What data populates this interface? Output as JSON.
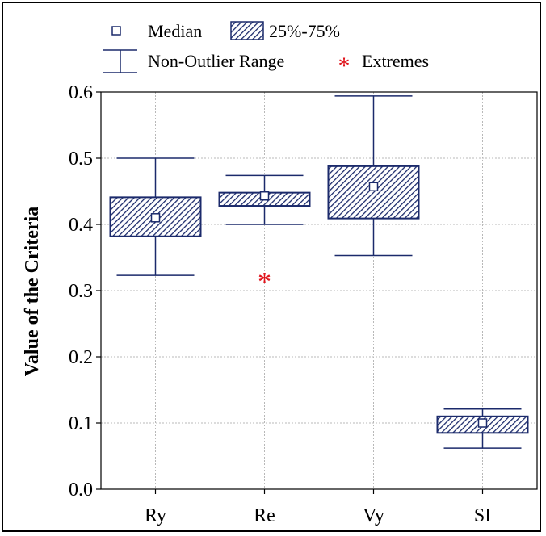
{
  "chart_data": {
    "type": "box",
    "title": "",
    "xlabel": "",
    "ylabel": "Value of the Criteria",
    "ylim": [
      0.0,
      0.6
    ],
    "yticks": [
      "0.0",
      "0.1",
      "0.2",
      "0.3",
      "0.4",
      "0.5",
      "0.6"
    ],
    "grid": true,
    "legend_position": "top",
    "legend": {
      "median": "Median",
      "box": "25%-75%",
      "range": "Non-Outlier Range",
      "extremes": "Extremes"
    },
    "categories": [
      "Ry",
      "Re",
      "Vy",
      "SI"
    ],
    "boxes": [
      {
        "label": "Ry",
        "min": 0.323,
        "q1": 0.382,
        "median": 0.41,
        "q3": 0.441,
        "max": 0.5,
        "extremes": []
      },
      {
        "label": "Re",
        "min": 0.4,
        "q1": 0.428,
        "median": 0.443,
        "q3": 0.448,
        "max": 0.474,
        "extremes": [
          0.317
        ]
      },
      {
        "label": "Vy",
        "min": 0.353,
        "q1": 0.409,
        "median": 0.457,
        "q3": 0.488,
        "max": 0.594,
        "extremes": []
      },
      {
        "label": "SI",
        "min": 0.062,
        "q1": 0.085,
        "median": 0.1,
        "q3": 0.11,
        "max": 0.121,
        "extremes": []
      }
    ],
    "colors": {
      "box_stroke": "#1b2a6b",
      "hatch": "#1b2a6b",
      "whisker": "#1b2a6b",
      "extreme": "#e0141c",
      "grid": "#b8b8b8"
    }
  }
}
